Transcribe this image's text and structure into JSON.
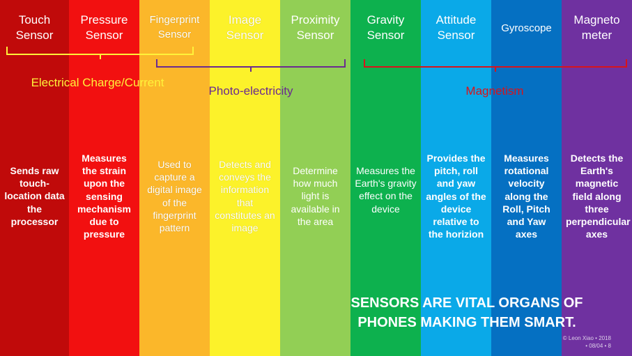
{
  "columns": [
    {
      "title": "Touch Sensor",
      "description": "Sends raw touch-location data the processor",
      "color": "#c00a0a"
    },
    {
      "title": "Pressure Sensor",
      "description": "Measures the strain upon the sensing mechanism due to pressure",
      "color": "#f21010"
    },
    {
      "title": "Fingerprint Sensor",
      "description": "Used to capture a digital image of the fingerprint pattern",
      "color": "#fbb72a"
    },
    {
      "title": "Image Sensor",
      "description": "Detects and conveys the information that constitutes an image",
      "color": "#fcf22a"
    },
    {
      "title": "Proximity Sensor",
      "description": "Determine how much light is available in the area",
      "color": "#92cf55"
    },
    {
      "title": "Gravity Sensor",
      "description": "Measures the Earth's gravity effect on the device",
      "color": "#0db14e"
    },
    {
      "title": "Attitude Sensor",
      "description": "Provides the pitch, roll and yaw angles of the device relative to the horizion",
      "color": "#0aa9e8"
    },
    {
      "title": "Gyroscope",
      "description": "Measures rotational velocity along the Roll, Pitch and Yaw axes",
      "color": "#0570c2"
    },
    {
      "title": "Magneto meter",
      "description": "Detects the Earth's magnetic field along three perpendicular axes",
      "color": "#6f31a0"
    }
  ],
  "groups": [
    {
      "label": "Electrical Charge/Current",
      "color": "#fff23a"
    },
    {
      "label": "Photo-electricity",
      "color": "#6a2a90"
    },
    {
      "label": "Magnetism",
      "color": "#d8131b"
    }
  ],
  "tagline": {
    "line1": "SENSORS ARE VITAL ORGANS OF",
    "line2": "PHONES MAKING THEM SMART."
  },
  "credit": {
    "line1": "© Leon Xiao • 2018",
    "line2": "• 08/04 • 8"
  }
}
